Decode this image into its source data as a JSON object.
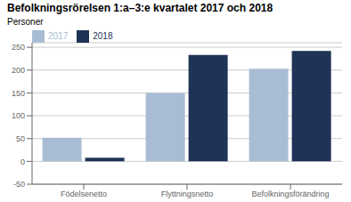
{
  "chart_data": {
    "type": "bar",
    "title": "Befolkningsrörelsen 1:a–3:e kvartalet 2017 och 2018",
    "y_label": "Personer",
    "categories": [
      "Födelsenetto",
      "Flyttningsnetto",
      "Befolkningsförändring"
    ],
    "series": [
      {
        "name": "2017",
        "color": "#a8bdd4",
        "values": [
          52,
          150,
          203
        ]
      },
      {
        "name": "2018",
        "color": "#1e3356",
        "values": [
          8,
          233,
          242
        ]
      }
    ],
    "ylim": [
      -50,
      260
    ],
    "yticks": [
      -50,
      0,
      50,
      100,
      150,
      200,
      250
    ],
    "grid": true,
    "legend": "upper left"
  }
}
